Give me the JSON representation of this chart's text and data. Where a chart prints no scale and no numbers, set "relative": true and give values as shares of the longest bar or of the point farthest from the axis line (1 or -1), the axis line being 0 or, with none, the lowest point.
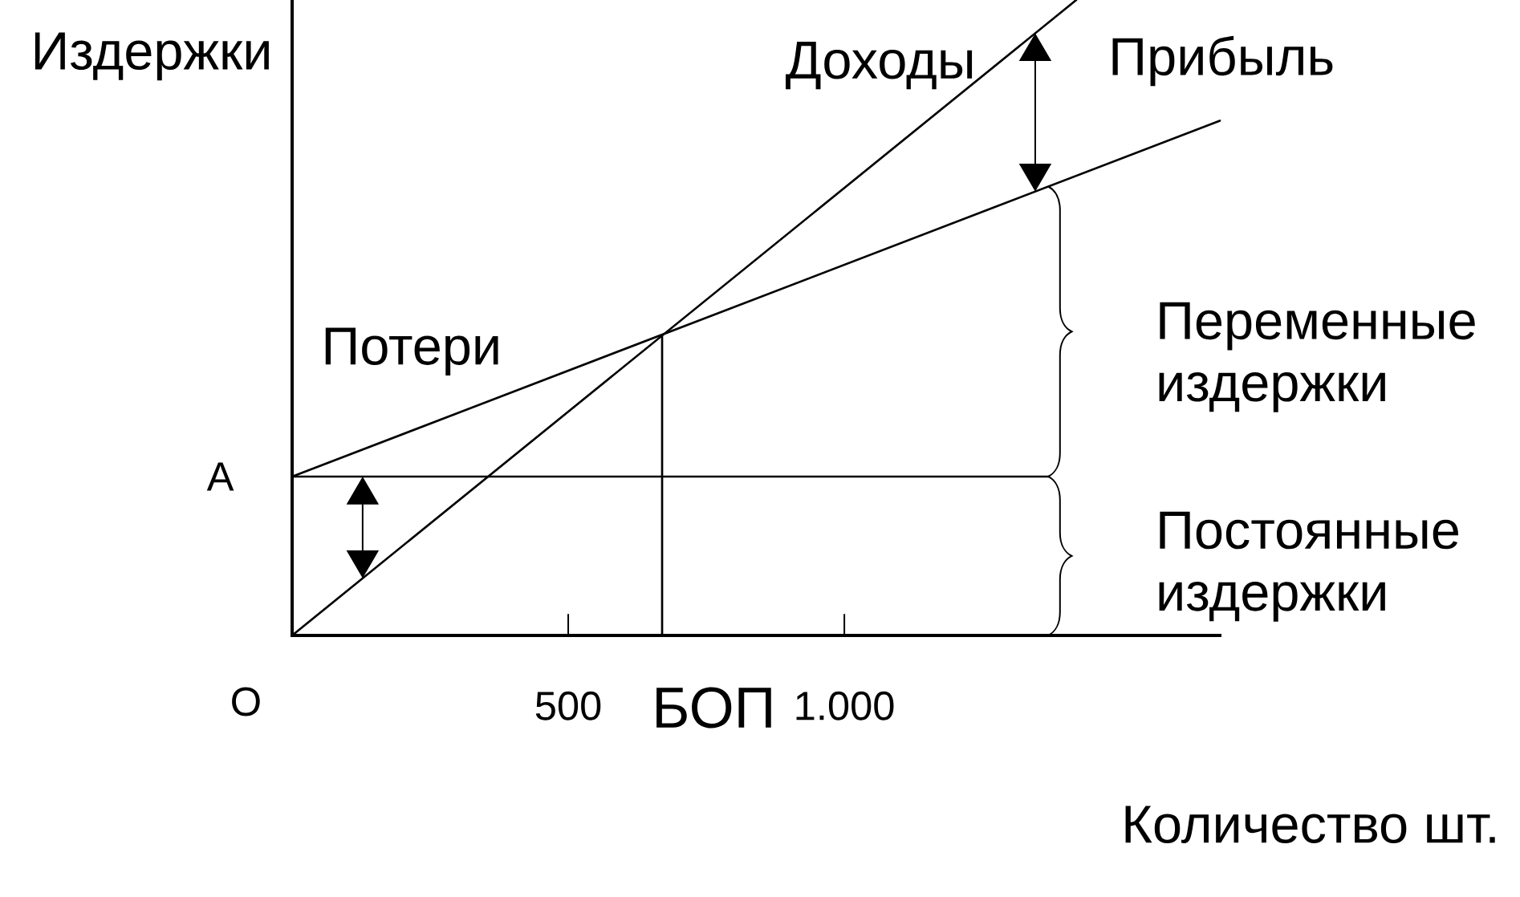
{
  "chart_data": {
    "type": "line",
    "relative": true,
    "xlabel": "Количество шт.",
    "ylabel": "Издержки",
    "xlim": [
      0,
      1680
    ],
    "xticks": [
      500,
      {
        "value": 1000,
        "label": "1.000"
      }
    ],
    "series": [
      {
        "name": "Доходы",
        "color": "#000000",
        "x": [
          0,
          1420
        ],
        "values": [
          0,
          1
        ]
      },
      {
        "color": "#000000",
        "x": [
          0,
          1680
        ],
        "values": [
          0.25,
          0.81
        ]
      },
      {
        "color": "#000000",
        "x": [
          0,
          1370
        ],
        "values": [
          0.25,
          0.25
        ]
      },
      {
        "color": "#000000",
        "x": [
          670,
          670
        ],
        "values": [
          0,
          0.47
        ]
      }
    ],
    "annotations": [
      "Потери",
      "Прибыль",
      "Переменные издержки",
      "Постоянные издержки",
      "БОП",
      "A",
      "O"
    ]
  }
}
